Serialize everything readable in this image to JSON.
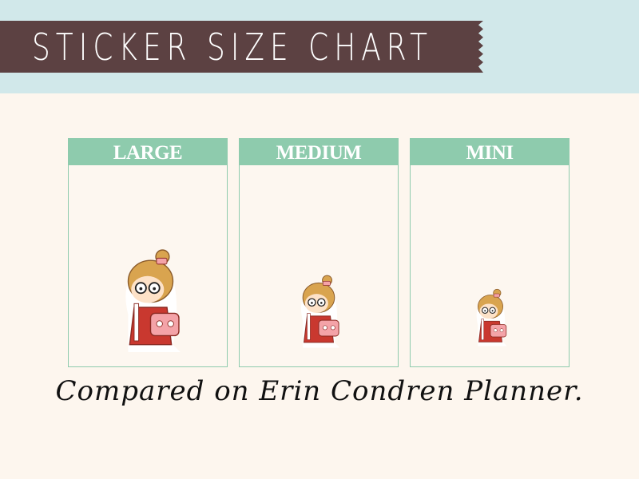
{
  "header": {
    "title": "STICKER SIZE CHART"
  },
  "panels": [
    {
      "label": "LARGE"
    },
    {
      "label": "MEDIUM"
    },
    {
      "label": "MINI"
    }
  ],
  "caption": "Compared on Erin Condren Planner.",
  "colors": {
    "banner": "#5c4142",
    "header_bg": "#d1e8ea",
    "panel_accent": "#8ecbad",
    "background": "#fdf6ee"
  }
}
